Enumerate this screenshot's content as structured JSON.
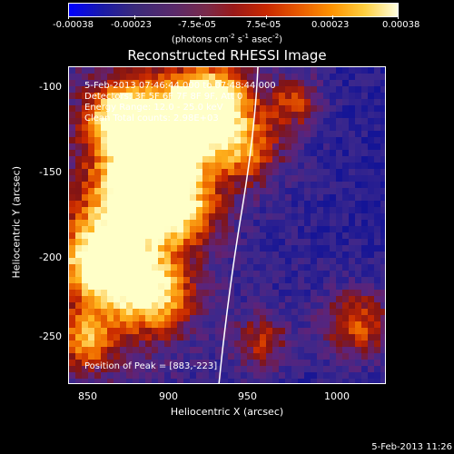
{
  "colorbar": {
    "ticks": [
      "-0.00038",
      "-0.00023",
      "-7.5e-05",
      "7.5e-05",
      "0.00023",
      "0.00038"
    ],
    "unit_parts": [
      "(photons cm",
      "-2",
      " s",
      "-1",
      " asec",
      "-2",
      ")"
    ]
  },
  "title": "Reconstructed RHESSI Image",
  "info": {
    "time": "5-Feb-2013 07:46:44.000 to 07:48:44.000",
    "detectors": "Detectors: 3F 5F 6F 7F 8F 9F, Att 0",
    "energy": "Energy Range: 12.0 - 25.0 keV",
    "clean": "Clean     Total counts: 2.98E+03",
    "peak": "Position of Peak = [883,-223]"
  },
  "axes": {
    "xlabel": "Heliocentric X (arcsec)",
    "ylabel": "Heliocentric Y (arcsec)",
    "xticks": [
      "850",
      "900",
      "950",
      "1000"
    ],
    "yticks": [
      "-100",
      "-150",
      "-200",
      "-250"
    ]
  },
  "timestamp": "5-Feb-2013 11:26"
}
